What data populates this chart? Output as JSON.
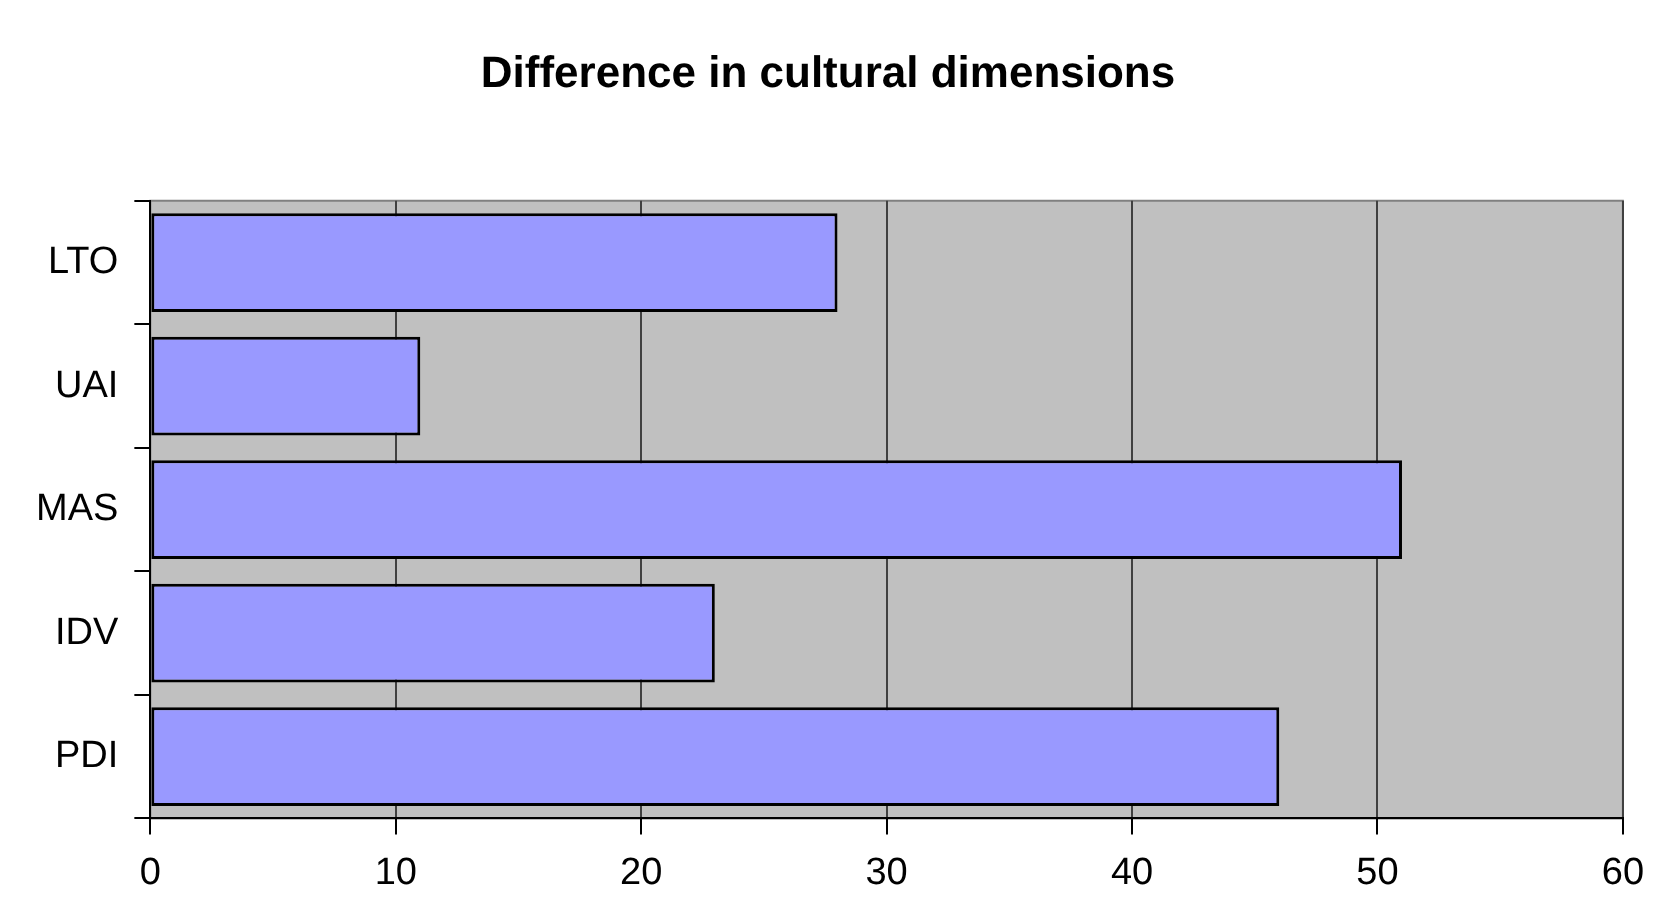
{
  "chart_data": {
    "type": "bar",
    "title": "Difference in cultural dimensions",
    "orientation": "horizontal",
    "categories": [
      "LTO",
      "UAI",
      "MAS",
      "IDV",
      "PDI"
    ],
    "values": [
      28,
      11,
      51,
      23,
      46
    ],
    "color": "#9999ff",
    "xlim": [
      0,
      60
    ],
    "xticks": [
      0,
      10,
      20,
      30,
      40,
      50,
      60
    ],
    "grid": "x",
    "legend": false
  }
}
